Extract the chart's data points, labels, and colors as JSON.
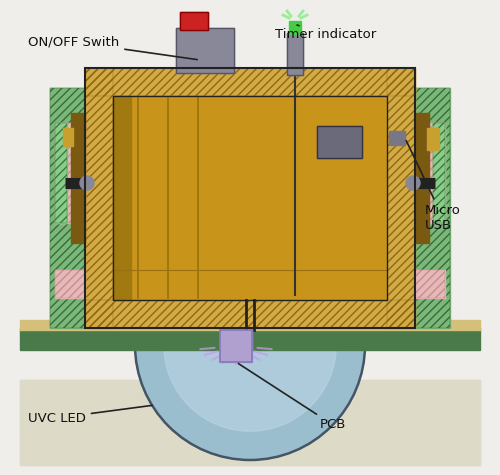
{
  "bg_color": "#ebebeb",
  "labels": {
    "on_off": "ON/OFF Swith",
    "timer": "Timer indicator",
    "micro_usb": "Micro\nUSB",
    "uvc_led": "UVC LED",
    "pcb": "PCB"
  },
  "colors": {
    "wood_dark": "#8b6914",
    "wood_mid": "#c49a28",
    "wood_light": "#d4aa44",
    "wood_inner": "#c8961e",
    "green_frame": "#4a7a4a",
    "green_light": "#7ab87a",
    "green_hatch": "#3a6a3a",
    "pink_gasket": "#e8b8b8",
    "pink_hatch": "#c09090",
    "gray_metal": "#888899",
    "gray_dark": "#555566",
    "red_button": "#cc2222",
    "green_led": "#44cc44",
    "pcb_purple": "#b0a0d0",
    "sphere_blue": "#9abece",
    "sphere_light": "#c0d8e8",
    "cream_bg": "#e8e4dc",
    "outer_bg": "#f0eeea",
    "black": "#111111",
    "uvc_glow": "#cc99ee",
    "bolt_dark": "#222222",
    "tan_trim": "#c8aa60",
    "brown_inner_wall": "#7a5a10"
  }
}
